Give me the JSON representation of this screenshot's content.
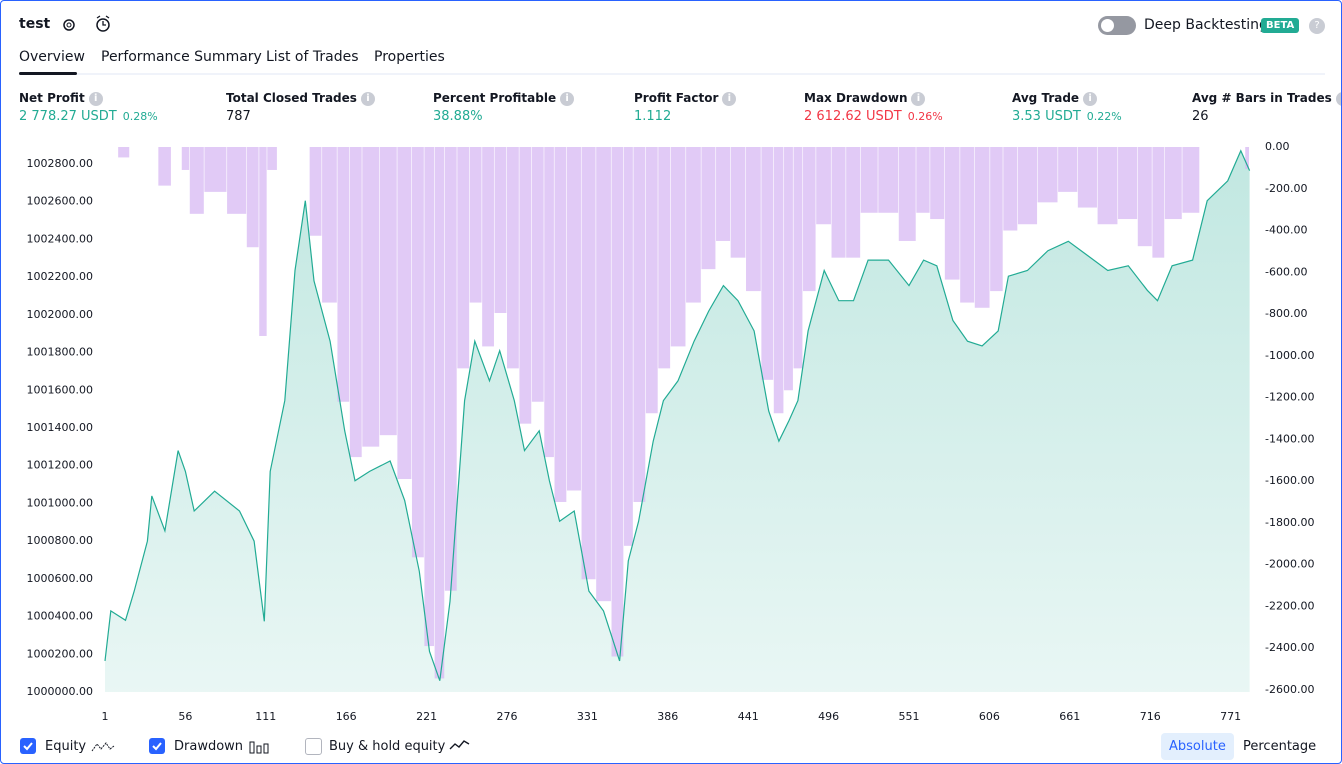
{
  "header": {
    "title": "test",
    "toggle_label": "Deep Backtesting",
    "badge": "BETA"
  },
  "tabs": [
    "Overview",
    "Performance Summary",
    "List of Trades",
    "Properties"
  ],
  "metrics": [
    {
      "label": "Net Profit",
      "value": "2 778.27 USDT",
      "percent": "0.28%"
    },
    {
      "label": "Total Closed Trades",
      "value": "787"
    },
    {
      "label": "Percent Profitable",
      "value": "38.88%"
    },
    {
      "label": "Profit Factor",
      "value": "1.112"
    },
    {
      "label": "Max Drawdown",
      "value": "2 612.62 USDT",
      "percent": "0.26%"
    },
    {
      "label": "Avg Trade",
      "value": "3.53 USDT",
      "percent": "0.22%"
    },
    {
      "label": "Avg # Bars in Trades",
      "value": "26"
    }
  ],
  "chart_data": {
    "type": "combo",
    "x": [
      1,
      5,
      15,
      21,
      30,
      33,
      42,
      51,
      56,
      62,
      76,
      93,
      103,
      110,
      114,
      124,
      131,
      138,
      144,
      155,
      165,
      172,
      182,
      196,
      206,
      216,
      223,
      230,
      237,
      247,
      254,
      264,
      271,
      281,
      288,
      298,
      305,
      312,
      322,
      332,
      342,
      353,
      359,
      366,
      376,
      383,
      393,
      404,
      414,
      424,
      434,
      445,
      455,
      462,
      469,
      475,
      482,
      493,
      503,
      513,
      523,
      537,
      551,
      561,
      570,
      581,
      591,
      601,
      612,
      619,
      632,
      646,
      660,
      673,
      687,
      701,
      714,
      721,
      731,
      745,
      755,
      769,
      778,
      784
    ],
    "series": [
      {
        "name": "Equity",
        "type": "area",
        "color": "#22ab94",
        "values": [
          1000165,
          1000430,
          1000380,
          1000535,
          1000800,
          1001040,
          1000855,
          1001280,
          1001170,
          1000960,
          1001065,
          1000960,
          1000800,
          1000375,
          1001170,
          1001545,
          1002235,
          1002605,
          1002180,
          1001860,
          1001385,
          1001120,
          1001170,
          1001225,
          1001015,
          1000640,
          1000215,
          1000060,
          1000480,
          1001545,
          1001860,
          1001650,
          1001810,
          1001545,
          1001280,
          1001385,
          1001120,
          1000905,
          1000960,
          1000535,
          1000430,
          1000165,
          1000695,
          1000905,
          1001330,
          1001545,
          1001650,
          1001860,
          1002020,
          1002155,
          1002075,
          1001915,
          1001490,
          1001330,
          1001440,
          1001545,
          1001915,
          1002235,
          1002075,
          1002075,
          1002290,
          1002290,
          1002155,
          1002290,
          1002260,
          1001970,
          1001860,
          1001835,
          1001915,
          1002205,
          1002235,
          1002340,
          1002390,
          1002315,
          1002235,
          1002260,
          1002130,
          1002075,
          1002260,
          1002290,
          1002605,
          1002710,
          1002870,
          1002765
        ]
      },
      {
        "name": "Drawdown",
        "type": "bar",
        "axis": "y2",
        "color": "#d7b8f3",
        "values": [
          0,
          0,
          -50,
          0,
          0,
          0,
          -185,
          0,
          -110,
          -320,
          -215,
          -320,
          -480,
          -905,
          -110,
          0,
          0,
          0,
          -425,
          -745,
          -1220,
          -1485,
          -1435,
          -1380,
          -1590,
          -1965,
          -2390,
          -2545,
          -2125,
          -1060,
          -745,
          -955,
          -795,
          -1060,
          -1325,
          -1220,
          -1485,
          -1700,
          -1645,
          -2070,
          -2175,
          -2440,
          -1910,
          -1700,
          -1275,
          -1060,
          -955,
          -745,
          -585,
          -450,
          -530,
          -690,
          -1115,
          -1275,
          -1165,
          -1060,
          -690,
          -370,
          -530,
          -530,
          -315,
          -315,
          -450,
          -315,
          -345,
          -635,
          -745,
          -770,
          -690,
          -400,
          -370,
          -265,
          -215,
          -290,
          -370,
          -345,
          -475,
          -530,
          -345,
          -315,
          0,
          0,
          0,
          -105
        ]
      }
    ],
    "xlim": [
      1,
      787
    ],
    "xticks": [
      1,
      56,
      111,
      166,
      221,
      276,
      331,
      386,
      441,
      496,
      551,
      606,
      661,
      716,
      771
    ],
    "ylim": [
      1000000,
      1002890
    ],
    "yticks": [
      {
        "value": 1000000,
        "label": "1000000.00"
      },
      {
        "value": 1000200,
        "label": "1000200.00"
      },
      {
        "value": 1000400,
        "label": "1000400.00"
      },
      {
        "value": 1000600,
        "label": "1000600.00"
      },
      {
        "value": 1000800,
        "label": "1000800.00"
      },
      {
        "value": 1001000,
        "label": "1001000.00"
      },
      {
        "value": 1001200,
        "label": "1001200.00"
      },
      {
        "value": 1001400,
        "label": "1001400.00"
      },
      {
        "value": 1001600,
        "label": "1001600.00"
      },
      {
        "value": 1001800,
        "label": "1001800.00"
      },
      {
        "value": 1002000,
        "label": "1002000.00"
      },
      {
        "value": 1002200,
        "label": "1002200.00"
      },
      {
        "value": 1002400,
        "label": "1002400.00"
      },
      {
        "value": 1002600,
        "label": "1002600.00"
      },
      {
        "value": 1002800,
        "label": "1002800.00"
      }
    ],
    "y2lim": [
      -2610,
      0
    ],
    "y2ticks": [
      {
        "value": 0,
        "label": "0.00"
      },
      {
        "value": -200,
        "label": "-200.00"
      },
      {
        "value": -400,
        "label": "-400.00"
      },
      {
        "value": -600,
        "label": "-600.00"
      },
      {
        "value": -800,
        "label": "-800.00"
      },
      {
        "value": -1000,
        "label": "-1000.00"
      },
      {
        "value": -1200,
        "label": "-1200.00"
      },
      {
        "value": -1400,
        "label": "-1400.00"
      },
      {
        "value": -1600,
        "label": "-1600.00"
      },
      {
        "value": -1800,
        "label": "-1800.00"
      },
      {
        "value": -2000,
        "label": "-2000.00"
      },
      {
        "value": -2200,
        "label": "-2200.00"
      },
      {
        "value": -2400,
        "label": "-2400.00"
      },
      {
        "value": -2600,
        "label": "-2600.00"
      }
    ]
  },
  "controls": {
    "buy_hold": "Buy & hold equity",
    "absolute": "Absolute",
    "percentage": "Percentage"
  }
}
